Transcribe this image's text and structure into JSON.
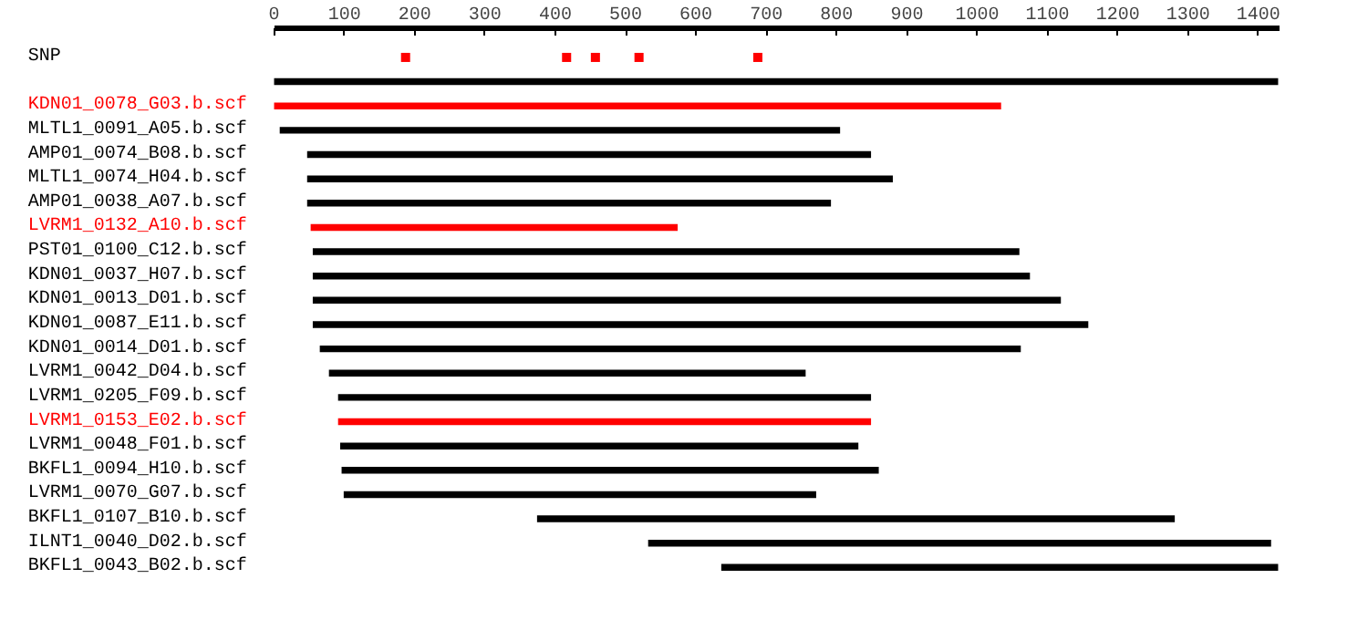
{
  "chart_data": {
    "type": "bar",
    "orientation": "horizontal",
    "grid": false,
    "categories": [
      "SNP",
      null,
      "KDN01_0078_G03.b.scf",
      "MLTL1_0091_A05.b.scf",
      "AMP01_0074_B08.b.scf",
      "MLTL1_0074_H04.b.scf",
      "AMP01_0038_A07.b.scf",
      "LVRM1_0132_A10.b.scf",
      "PST01_0100_C12.b.scf",
      "KDN01_0037_H07.b.scf",
      "KDN01_0013_D01.b.scf",
      "KDN01_0087_E11.b.scf",
      "KDN01_0014_D01.b.scf",
      "LVRM1_0042_D04.b.scf",
      "LVRM1_0205_F09.b.scf",
      "LVRM1_0153_E02.b.scf",
      "LVRM1_0048_F01.b.scf",
      "BKFL1_0094_H10.b.scf",
      "LVRM1_0070_G07.b.scf",
      "BKFL1_0107_B10.b.scf",
      "ILNT1_0040_D02.b.scf",
      "BKFL1_0043_B02.b.scf"
    ],
    "xlim": [
      0,
      1430
    ],
    "xticks": [
      0,
      100,
      200,
      300,
      400,
      500,
      600,
      700,
      800,
      900,
      1000,
      1100,
      1200,
      1300,
      1400
    ],
    "series": [
      {
        "base": [
          null,
          0,
          0,
          8,
          47,
          47,
          47,
          52,
          55,
          55,
          55,
          55,
          65,
          78,
          91,
          91,
          94,
          96,
          99,
          374,
          532,
          636
        ],
        "values": [
          null,
          1428,
          1034,
          797,
          802,
          833,
          745,
          522,
          1005,
          1020,
          1064,
          1103,
          997,
          678,
          758,
          758,
          737,
          764,
          672,
          907,
          886,
          792
        ],
        "colors": [
          "#000000",
          "#000000",
          "#ff0000",
          "#000000",
          "#000000",
          "#000000",
          "#000000",
          "#ff0000",
          "#000000",
          "#000000",
          "#000000",
          "#000000",
          "#000000",
          "#000000",
          "#000000",
          "#ff0000",
          "#000000",
          "#000000",
          "#000000",
          "#000000",
          "#000000",
          "#000000"
        ]
      },
      {
        "type": "scatter",
        "marker": "square",
        "color": "#ff0000",
        "x": [
          "SNP",
          "SNP",
          "SNP",
          "SNP",
          "SNP"
        ],
        "values": [
          187,
          416,
          457,
          519,
          688
        ]
      }
    ]
  }
}
